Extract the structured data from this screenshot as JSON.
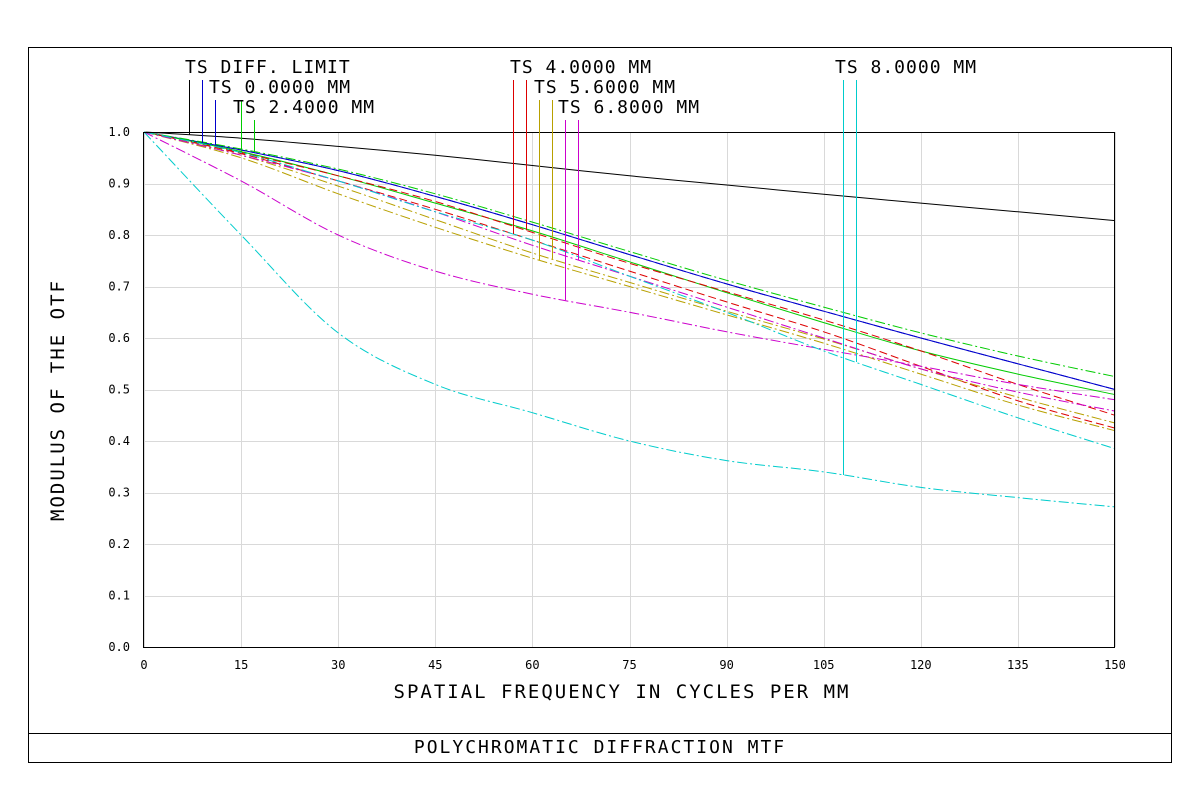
{
  "chart_data": {
    "type": "line",
    "title": "POLYCHROMATIC DIFFRACTION MTF",
    "xlabel": "SPATIAL FREQUENCY IN CYCLES PER MM",
    "ylabel": "MODULUS OF THE OTF",
    "xlim": [
      0,
      150
    ],
    "ylim": [
      0,
      1
    ],
    "grid": true,
    "xticks": [
      "0",
      "15",
      "30",
      "45",
      "60",
      "75",
      "90",
      "105",
      "120",
      "135",
      "150"
    ],
    "yticks": [
      "0.0",
      "0.1",
      "0.2",
      "0.3",
      "0.4",
      "0.5",
      "0.6",
      "0.7",
      "0.8",
      "0.9",
      "1.0"
    ],
    "legend": [
      {
        "label": "TS DIFF. LIMIT"
      },
      {
        "label": "TS 0.0000 MM"
      },
      {
        "label": "TS 2.4000 MM"
      },
      {
        "label": "TS 4.0000 MM"
      },
      {
        "label": "TS 5.6000 MM"
      },
      {
        "label": "TS 6.8000 MM"
      },
      {
        "label": "TS 8.0000 MM"
      }
    ],
    "x": [
      0,
      15,
      30,
      45,
      60,
      75,
      90,
      105,
      120,
      135,
      150
    ],
    "series": [
      {
        "name": "TS DIFF. LIMIT",
        "color": "#000000",
        "dash": "",
        "marker_x": 7,
        "values": [
          1.0,
          0.988,
          0.972,
          0.955,
          0.935,
          0.915,
          0.897,
          0.879,
          0.862,
          0.845,
          0.828
        ]
      },
      {
        "name": "TS 0.0000 MM T",
        "color": "#0000cc",
        "dash": "",
        "marker_x": 9,
        "values": [
          1.0,
          0.965,
          0.925,
          0.875,
          0.82,
          0.762,
          0.705,
          0.652,
          0.6,
          0.55,
          0.5
        ]
      },
      {
        "name": "TS 0.0000 MM S",
        "color": "#0000cc",
        "dash": "8 4",
        "marker_x": 11,
        "values": [
          1.0,
          0.965,
          0.925,
          0.875,
          0.82,
          0.762,
          0.705,
          0.652,
          0.6,
          0.55,
          0.5
        ]
      },
      {
        "name": "TS 2.4000 MM T",
        "color": "#00cc00",
        "dash": "",
        "marker_x": 15,
        "values": [
          1.0,
          0.962,
          0.915,
          0.862,
          0.808,
          0.748,
          0.688,
          0.63,
          0.575,
          0.53,
          0.49
        ]
      },
      {
        "name": "TS 2.4000 MM S",
        "color": "#00cc00",
        "dash": "10 3 2 3",
        "marker_x": 17,
        "values": [
          1.0,
          0.967,
          0.928,
          0.88,
          0.825,
          0.768,
          0.712,
          0.66,
          0.61,
          0.565,
          0.525
        ]
      },
      {
        "name": "TS 4.0000 MM T",
        "color": "#dd0000",
        "dash": "8 4",
        "marker_x": 57,
        "values": [
          1.0,
          0.958,
          0.905,
          0.85,
          0.79,
          0.73,
          0.67,
          0.612,
          0.545,
          0.478,
          0.425
        ]
      },
      {
        "name": "TS 4.0000 MM S",
        "color": "#dd0000",
        "dash": "8 4",
        "marker_x": 59,
        "values": [
          1.0,
          0.96,
          0.915,
          0.865,
          0.805,
          0.745,
          0.69,
          0.635,
          0.575,
          0.51,
          0.45
        ]
      },
      {
        "name": "TS 5.6000 MM T",
        "color": "#b8a000",
        "dash": "10 3 2 3",
        "marker_x": 61,
        "values": [
          1.0,
          0.95,
          0.88,
          0.815,
          0.755,
          0.7,
          0.645,
          0.59,
          0.53,
          0.47,
          0.42
        ]
      },
      {
        "name": "TS 5.6000 MM S",
        "color": "#b8a000",
        "dash": "10 3 2 3",
        "marker_x": 63,
        "values": [
          1.0,
          0.955,
          0.895,
          0.83,
          0.765,
          0.708,
          0.652,
          0.598,
          0.54,
          0.485,
          0.435
        ]
      },
      {
        "name": "TS 6.8000 MM T",
        "color": "#cc00cc",
        "dash": "10 3 2 3",
        "marker_x": 65,
        "values": [
          1.0,
          0.905,
          0.8,
          0.73,
          0.685,
          0.65,
          0.612,
          0.578,
          0.545,
          0.51,
          0.48
        ]
      },
      {
        "name": "TS 6.8000 MM S",
        "color": "#cc00cc",
        "dash": "10 3 2 3",
        "marker_x": 67,
        "values": [
          1.0,
          0.955,
          0.905,
          0.845,
          0.78,
          0.72,
          0.66,
          0.6,
          0.54,
          0.495,
          0.458
        ]
      },
      {
        "name": "TS 8.0000 MM T",
        "color": "#00cccc",
        "dash": "10 3 2 3",
        "marker_x": 108,
        "values": [
          1.0,
          0.8,
          0.61,
          0.51,
          0.455,
          0.4,
          0.362,
          0.34,
          0.31,
          0.29,
          0.272
        ]
      },
      {
        "name": "TS 8.0000 MM S",
        "color": "#00cccc",
        "dash": "10 3 2 3",
        "marker_x": 110,
        "values": [
          1.0,
          0.96,
          0.905,
          0.845,
          0.79,
          0.72,
          0.65,
          0.575,
          0.51,
          0.445,
          0.385
        ]
      }
    ]
  }
}
